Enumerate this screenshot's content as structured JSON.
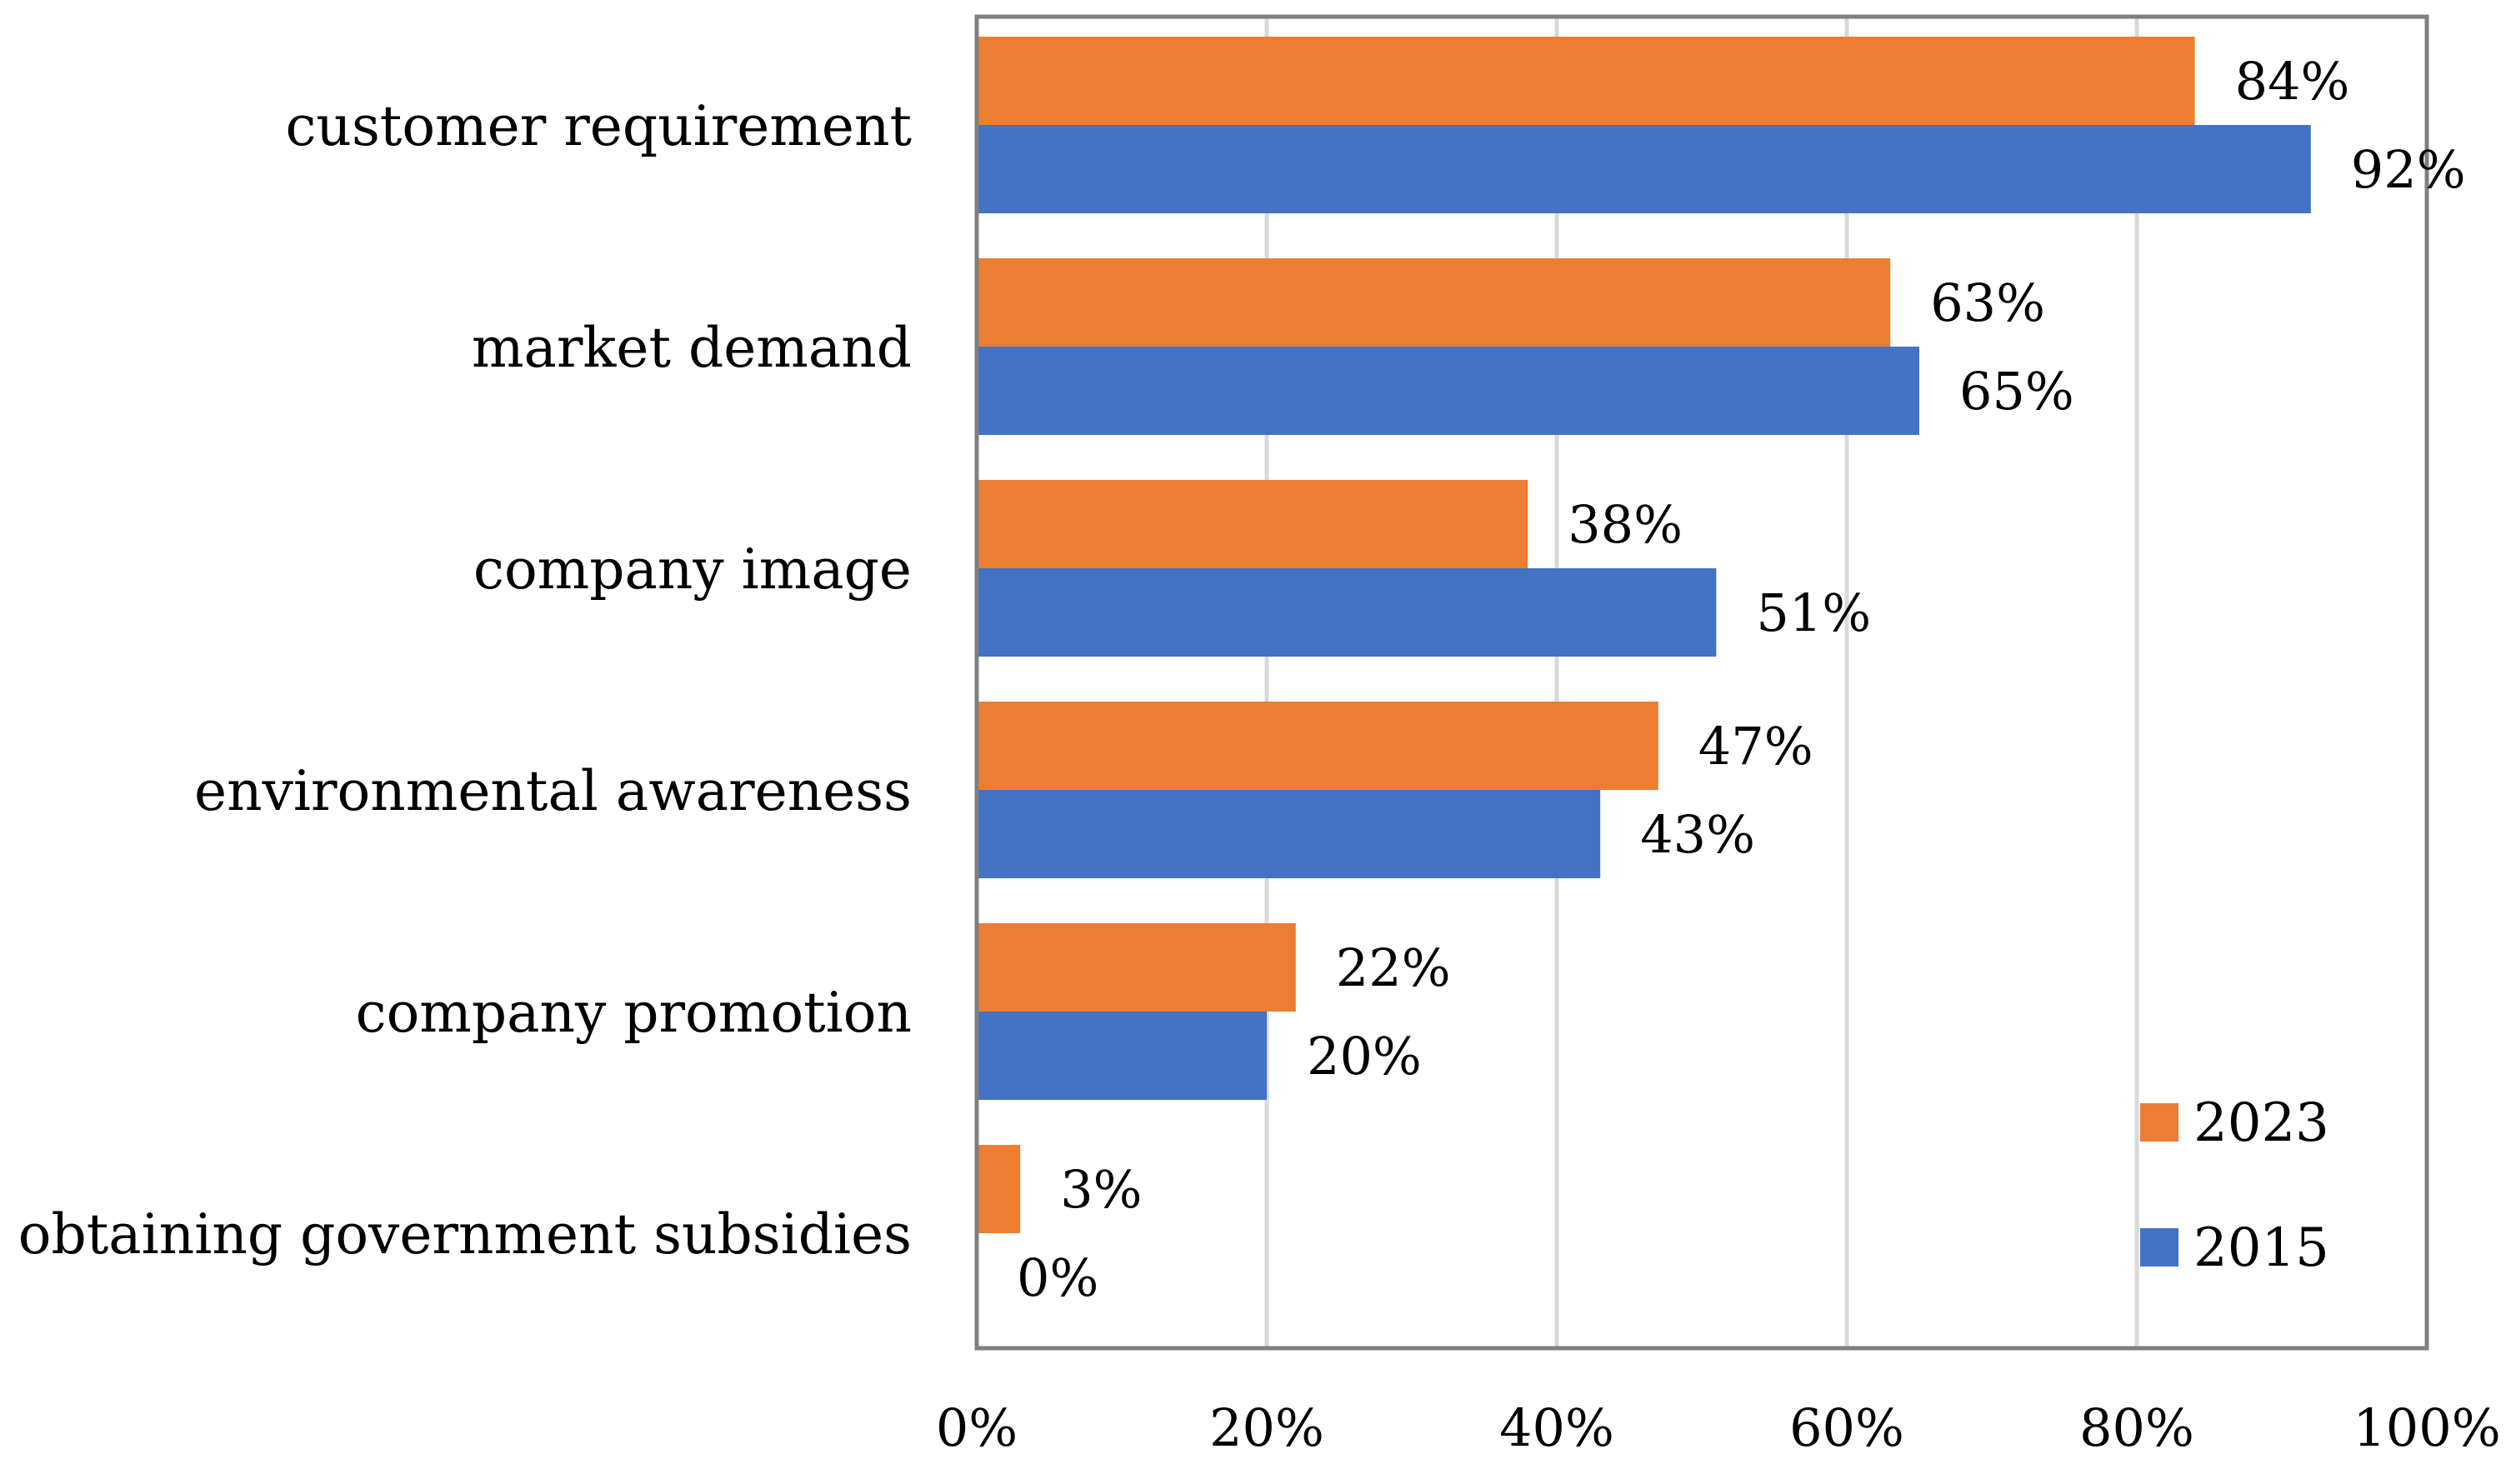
{
  "chart_data": {
    "type": "bar",
    "orientation": "horizontal",
    "title": "",
    "xlabel": "",
    "ylabel": "",
    "categories": [
      "customer requirement",
      "market demand",
      "company image",
      "environmental awareness",
      "company promotion",
      "obtaining government subsidies"
    ],
    "series": [
      {
        "name": "2023",
        "color": "#ED7D31",
        "values": [
          84,
          63,
          38,
          47,
          22,
          3
        ],
        "labels": [
          "84%",
          "63%",
          "38%",
          "47%",
          "22%",
          "3%"
        ]
      },
      {
        "name": "2015",
        "color": "#4472C4",
        "values": [
          92,
          65,
          51,
          43,
          20,
          0
        ],
        "labels": [
          "92%",
          "65%",
          "51%",
          "43%",
          "20%",
          "0%"
        ]
      }
    ],
    "xlim": [
      0,
      100
    ],
    "xticks": [
      0,
      20,
      40,
      60,
      80,
      100
    ],
    "xtick_labels": [
      "0%",
      "20%",
      "40%",
      "60%",
      "80%",
      "100%"
    ],
    "grid": "vertical",
    "legend": {
      "position": "bottom-right-inside",
      "entries": [
        "2023",
        "2015"
      ]
    }
  }
}
